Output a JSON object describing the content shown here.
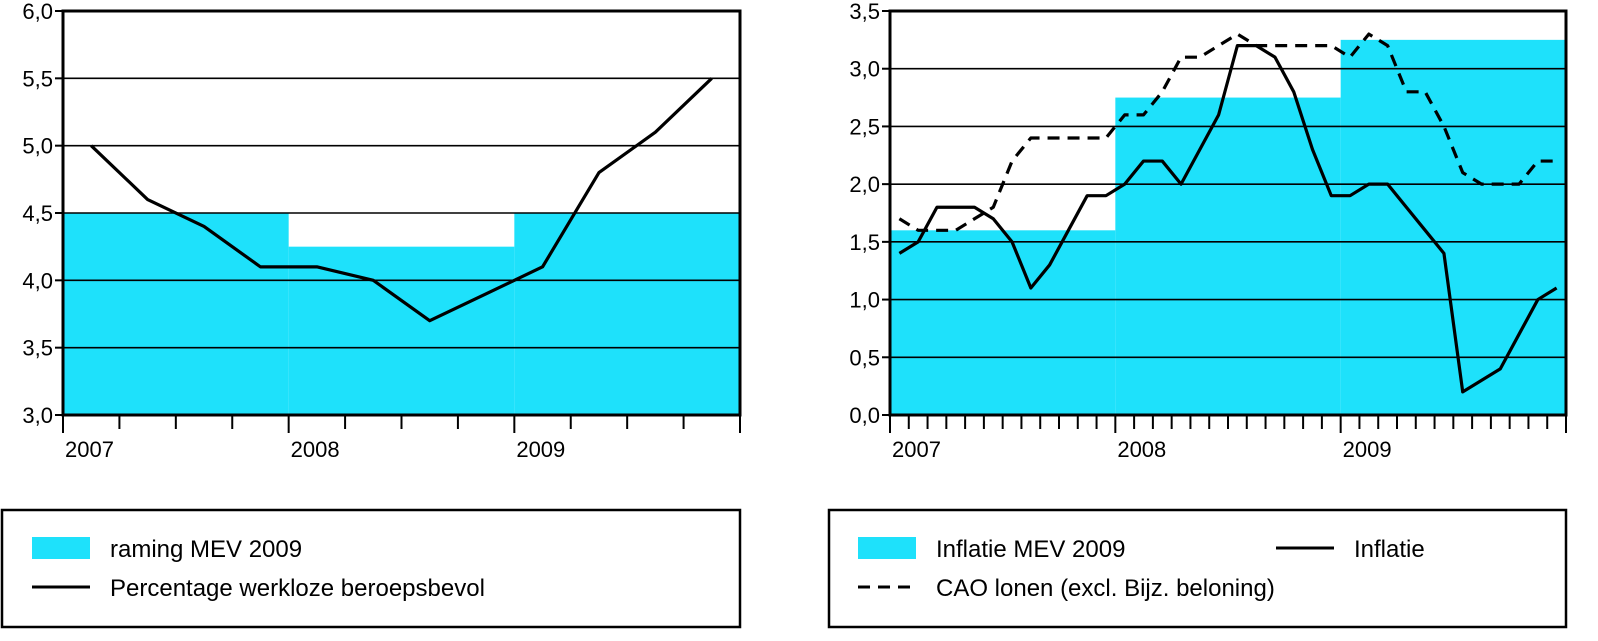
{
  "colors": {
    "band": "#1ee1fb",
    "line": "#000000",
    "background": "#ffffff"
  },
  "chart_data": [
    {
      "type": "line",
      "title": "",
      "xlabel": "",
      "ylabel": "",
      "grid": true,
      "xlim": [
        "2007-01",
        "2010-01"
      ],
      "ylim": [
        3.0,
        6.0
      ],
      "yticks": [
        "3,0",
        "3,5",
        "4,0",
        "4,5",
        "5,0",
        "5,5",
        "6,0"
      ],
      "xtick_labels": [
        "2007",
        "2008",
        "2009"
      ],
      "band": {
        "name": "raming MEV 2009",
        "segments": [
          {
            "from": "2007-01",
            "to": "2008-01",
            "value": 4.5
          },
          {
            "from": "2008-01",
            "to": "2009-01",
            "value": 4.25
          },
          {
            "from": "2009-01",
            "to": "2010-01",
            "value": 4.5
          }
        ]
      },
      "series": [
        {
          "name": "Percentage werkloze beroepsbevol",
          "style": "solid",
          "x": [
            "2007-02",
            "2007-05",
            "2007-08",
            "2007-11",
            "2008-02",
            "2008-05",
            "2008-08",
            "2008-11",
            "2009-02",
            "2009-05",
            "2009-08",
            "2009-11"
          ],
          "values": [
            5.0,
            4.6,
            4.4,
            4.1,
            4.1,
            4.0,
            3.7,
            3.9,
            4.1,
            4.8,
            5.1,
            5.5
          ]
        }
      ],
      "legend": {
        "placement": "bottom",
        "items": [
          {
            "label": "raming MEV 2009",
            "kind": "band"
          },
          {
            "label": "Percentage werkloze beroepsbevol",
            "kind": "solid"
          }
        ]
      }
    },
    {
      "type": "line",
      "title": "",
      "xlabel": "",
      "ylabel": "",
      "grid": true,
      "xlim": [
        "2007-01",
        "2010-01"
      ],
      "ylim": [
        0.0,
        3.5
      ],
      "yticks": [
        "0,0",
        "0,5",
        "1,0",
        "1,5",
        "2,0",
        "2,5",
        "3,0",
        "3,5"
      ],
      "xtick_labels": [
        "2007",
        "2008",
        "2009"
      ],
      "band": {
        "name": "Inflatie MEV 2009",
        "segments": [
          {
            "from": "2007-01",
            "to": "2008-01",
            "value": 1.6
          },
          {
            "from": "2008-01",
            "to": "2009-01",
            "value": 2.75
          },
          {
            "from": "2009-01",
            "to": "2010-01",
            "value": 3.25
          }
        ]
      },
      "series": [
        {
          "name": "Inflatie",
          "style": "solid",
          "x": [
            "2007-01",
            "2007-02",
            "2007-03",
            "2007-04",
            "2007-05",
            "2007-06",
            "2007-07",
            "2007-08",
            "2007-09",
            "2007-10",
            "2007-11",
            "2007-12",
            "2008-01",
            "2008-02",
            "2008-03",
            "2008-04",
            "2008-05",
            "2008-06",
            "2008-07",
            "2008-08",
            "2008-09",
            "2008-10",
            "2008-11",
            "2008-12",
            "2009-01",
            "2009-02",
            "2009-03",
            "2009-04",
            "2009-05",
            "2009-06",
            "2009-07",
            "2009-08",
            "2009-09",
            "2009-10",
            "2009-11",
            "2009-12"
          ],
          "values": [
            1.4,
            1.5,
            1.8,
            1.8,
            1.8,
            1.7,
            1.5,
            1.1,
            1.3,
            1.6,
            1.9,
            1.9,
            2.0,
            2.2,
            2.2,
            2.0,
            2.3,
            2.6,
            3.2,
            3.2,
            3.1,
            2.8,
            2.3,
            1.9,
            1.9,
            2.0,
            2.0,
            1.8,
            1.6,
            1.4,
            0.2,
            0.3,
            0.4,
            0.7,
            1.0,
            1.1
          ]
        },
        {
          "name": "CAO lonen (excl. Bijz. beloning)",
          "style": "dashed",
          "x": [
            "2007-01",
            "2007-02",
            "2007-03",
            "2007-04",
            "2007-05",
            "2007-06",
            "2007-07",
            "2007-08",
            "2007-09",
            "2007-10",
            "2007-11",
            "2007-12",
            "2008-01",
            "2008-02",
            "2008-03",
            "2008-04",
            "2008-05",
            "2008-06",
            "2008-07",
            "2008-08",
            "2008-09",
            "2008-10",
            "2008-11",
            "2008-12",
            "2009-01",
            "2009-02",
            "2009-03",
            "2009-04",
            "2009-05",
            "2009-06",
            "2009-07",
            "2009-08",
            "2009-09",
            "2009-10",
            "2009-11",
            "2009-12"
          ],
          "values": [
            1.7,
            1.6,
            1.6,
            1.6,
            1.7,
            1.8,
            2.2,
            2.4,
            2.4,
            2.4,
            2.4,
            2.4,
            2.6,
            2.6,
            2.8,
            3.1,
            3.1,
            3.2,
            3.3,
            3.2,
            3.2,
            3.2,
            3.2,
            3.2,
            3.1,
            3.3,
            3.2,
            2.8,
            2.8,
            2.5,
            2.1,
            2.0,
            2.0,
            2.0,
            2.2,
            2.2
          ]
        }
      ],
      "legend": {
        "placement": "bottom",
        "items": [
          {
            "label": "Inflatie MEV 2009",
            "kind": "band"
          },
          {
            "label": "Inflatie",
            "kind": "solid"
          },
          {
            "label": "CAO lonen (excl. Bijz. beloning)",
            "kind": "dashed"
          }
        ]
      }
    }
  ]
}
